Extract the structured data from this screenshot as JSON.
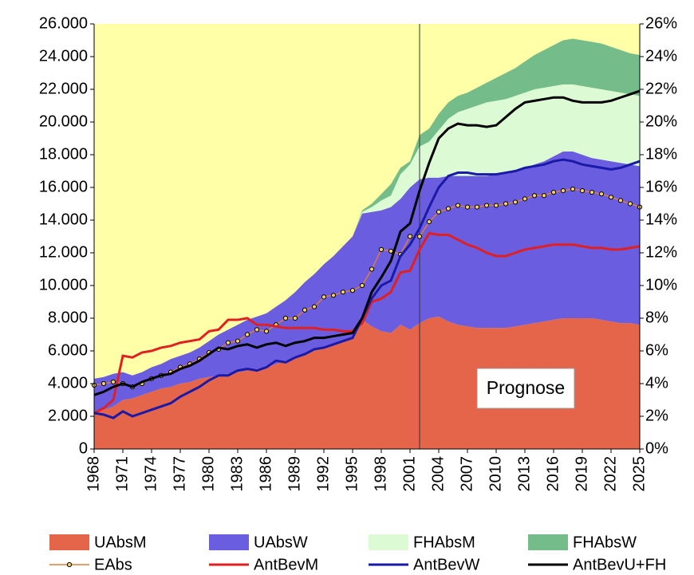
{
  "chart_data": {
    "type": "area",
    "stacked": true,
    "plot_background": "#ffffa8",
    "x": [
      1968,
      1969,
      1970,
      1971,
      1972,
      1973,
      1974,
      1975,
      1976,
      1977,
      1978,
      1979,
      1980,
      1981,
      1982,
      1983,
      1984,
      1985,
      1986,
      1987,
      1988,
      1989,
      1990,
      1991,
      1992,
      1993,
      1994,
      1995,
      1996,
      1997,
      1998,
      1999,
      2000,
      2001,
      2002,
      2003,
      2004,
      2005,
      2006,
      2007,
      2008,
      2009,
      2010,
      2011,
      2012,
      2013,
      2014,
      2015,
      2016,
      2017,
      2018,
      2019,
      2020,
      2021,
      2022,
      2023,
      2024,
      2025
    ],
    "xlim": [
      1968,
      2025
    ],
    "xticks": [
      1968,
      1971,
      1974,
      1977,
      1980,
      1983,
      1986,
      1989,
      1992,
      1995,
      1998,
      2001,
      2004,
      2007,
      2010,
      2013,
      2016,
      2019,
      2022,
      2025
    ],
    "ylim": [
      0,
      26000
    ],
    "yticks": [
      0,
      {
        "value": 2000,
        "label": "2.000"
      },
      {
        "value": 4000,
        "label": "4.000"
      },
      {
        "value": 6000,
        "label": "6.000"
      },
      {
        "value": 8000,
        "label": "8.000"
      },
      {
        "value": 10000,
        "label": "10.000"
      },
      {
        "value": 12000,
        "label": "12.000"
      },
      {
        "value": 14000,
        "label": "14.000"
      },
      {
        "value": 16000,
        "label": "16.000"
      },
      {
        "value": 18000,
        "label": "18.000"
      },
      {
        "value": 20000,
        "label": "20.000"
      },
      {
        "value": 22000,
        "label": "22.000"
      },
      {
        "value": 24000,
        "label": "24.000"
      },
      {
        "value": 26000,
        "label": "26.000"
      }
    ],
    "y2lim": [
      0,
      26
    ],
    "y2ticks": [
      {
        "value": 0,
        "label": "0%"
      },
      {
        "value": 2,
        "label": "2%"
      },
      {
        "value": 4,
        "label": "4%"
      },
      {
        "value": 6,
        "label": "6%"
      },
      {
        "value": 8,
        "label": "8%"
      },
      {
        "value": 10,
        "label": "10%"
      },
      {
        "value": 12,
        "label": "12%"
      },
      {
        "value": 14,
        "label": "14%"
      },
      {
        "value": 16,
        "label": "16%"
      },
      {
        "value": 18,
        "label": "18%"
      },
      {
        "value": 20,
        "label": "20%"
      },
      {
        "value": 22,
        "label": "22%"
      },
      {
        "value": 24,
        "label": "24%"
      },
      {
        "value": 26,
        "label": "26%"
      }
    ],
    "divider_x": 2002,
    "annotation": "Prognose",
    "series": [
      {
        "name": "UAbsM",
        "kind": "area",
        "color": "#e5654b",
        "values": [
          2200,
          2400,
          2600,
          3000,
          3100,
          3300,
          3500,
          3700,
          3800,
          4000,
          4100,
          4300,
          4400,
          4500,
          4600,
          4700,
          4800,
          4900,
          5000,
          5200,
          5400,
          5600,
          5800,
          6000,
          6200,
          6400,
          6600,
          6900,
          7900,
          7500,
          7200,
          7100,
          7600,
          7300,
          7700,
          8000,
          8100,
          7800,
          7600,
          7500,
          7400,
          7400,
          7400,
          7400,
          7500,
          7600,
          7700,
          7800,
          7900,
          8000,
          8000,
          8000,
          8000,
          7900,
          7800,
          7700,
          7700,
          7600
        ]
      },
      {
        "name": "UAbsW",
        "kind": "area",
        "color": "#6b5de0",
        "values": [
          2100,
          2000,
          2000,
          1700,
          1400,
          1400,
          1500,
          1500,
          1700,
          1700,
          1800,
          1900,
          2200,
          2500,
          2700,
          2900,
          3100,
          3200,
          3300,
          3500,
          3700,
          4000,
          4400,
          4700,
          5100,
          5400,
          5800,
          6100,
          6500,
          7000,
          7400,
          7700,
          7700,
          8700,
          8800,
          8600,
          8500,
          8900,
          9100,
          9200,
          9300,
          9300,
          9400,
          9500,
          9500,
          9600,
          9700,
          9800,
          10000,
          10200,
          10200,
          10000,
          9800,
          9800,
          9800,
          9800,
          9700,
          9700
        ]
      },
      {
        "name": "FHAbsM",
        "kind": "area",
        "color": "#dcfbd4",
        "values": [
          0,
          0,
          0,
          0,
          0,
          0,
          0,
          0,
          0,
          0,
          0,
          0,
          0,
          0,
          0,
          0,
          0,
          0,
          0,
          0,
          0,
          0,
          0,
          0,
          0,
          0,
          0,
          0,
          100,
          300,
          600,
          700,
          1500,
          1400,
          2000,
          2200,
          2900,
          3500,
          3900,
          4100,
          4300,
          4500,
          4500,
          4500,
          4600,
          4600,
          4600,
          4500,
          4300,
          4100,
          4100,
          4200,
          4300,
          4300,
          4300,
          4300,
          4300,
          4300
        ]
      },
      {
        "name": "FHAbsW",
        "kind": "area",
        "color": "#74bd8a",
        "values": [
          0,
          0,
          0,
          0,
          0,
          0,
          0,
          0,
          0,
          0,
          0,
          0,
          0,
          0,
          0,
          0,
          0,
          0,
          0,
          0,
          0,
          0,
          0,
          0,
          0,
          0,
          0,
          0,
          100,
          200,
          400,
          700,
          400,
          200,
          700,
          800,
          1000,
          1000,
          1000,
          1000,
          1100,
          1200,
          1400,
          1600,
          1700,
          1900,
          2100,
          2300,
          2500,
          2700,
          2800,
          2800,
          2800,
          2800,
          2700,
          2600,
          2500,
          2500
        ]
      },
      {
        "name": "EAbs",
        "kind": "line",
        "axis": "y2",
        "marker": true,
        "color": "#e07b39",
        "values": [
          3.9,
          4.0,
          4.1,
          4.0,
          3.8,
          4.0,
          4.3,
          4.5,
          4.7,
          5.0,
          5.2,
          5.5,
          5.9,
          6.1,
          6.5,
          6.6,
          7.0,
          7.3,
          7.2,
          7.6,
          8.0,
          8.0,
          8.5,
          8.7,
          9.3,
          9.4,
          9.6,
          9.7,
          10.0,
          11.0,
          12.2,
          12.1,
          11.9,
          13.0,
          13.0,
          13.9,
          14.5,
          14.7,
          14.9,
          14.8,
          14.8,
          14.9,
          14.9,
          15.0,
          15.1,
          15.3,
          15.5,
          15.5,
          15.7,
          15.8,
          15.9,
          15.8,
          15.7,
          15.6,
          15.4,
          15.2,
          15.0,
          14.8
        ]
      },
      {
        "name": "AntBevM",
        "kind": "line",
        "axis": "y2",
        "color": "#e02020",
        "values": [
          2.2,
          2.5,
          3.0,
          5.7,
          5.6,
          5.9,
          6.0,
          6.2,
          6.3,
          6.5,
          6.6,
          6.7,
          7.2,
          7.3,
          7.9,
          7.9,
          8.0,
          7.6,
          7.6,
          7.5,
          7.4,
          7.4,
          7.4,
          7.4,
          7.3,
          7.3,
          7.2,
          7.2,
          7.7,
          9.0,
          9.2,
          9.6,
          10.8,
          10.9,
          12.2,
          13.2,
          13.1,
          13.1,
          12.8,
          12.5,
          12.3,
          12.0,
          11.8,
          11.8,
          12.0,
          12.2,
          12.3,
          12.4,
          12.5,
          12.5,
          12.5,
          12.4,
          12.3,
          12.3,
          12.2,
          12.2,
          12.3,
          12.4
        ]
      },
      {
        "name": "AntBevW",
        "kind": "line",
        "axis": "y2",
        "color": "#1a1aa8",
        "values": [
          2.2,
          2.1,
          1.9,
          2.3,
          2.0,
          2.2,
          2.4,
          2.6,
          2.8,
          3.2,
          3.5,
          3.8,
          4.2,
          4.5,
          4.5,
          4.8,
          4.9,
          4.8,
          5.0,
          5.4,
          5.3,
          5.6,
          5.8,
          6.1,
          6.2,
          6.4,
          6.6,
          6.8,
          8.0,
          9.2,
          10.0,
          10.3,
          11.8,
          12.5,
          13.5,
          14.8,
          16.0,
          16.7,
          16.9,
          16.9,
          16.8,
          16.8,
          16.8,
          16.9,
          17.0,
          17.2,
          17.3,
          17.4,
          17.6,
          17.7,
          17.6,
          17.4,
          17.3,
          17.2,
          17.1,
          17.2,
          17.4,
          17.6
        ]
      },
      {
        "name": "AntBevU+FH",
        "kind": "line",
        "axis": "y2",
        "color": "#000000",
        "values": [
          3.3,
          3.5,
          3.8,
          4.0,
          3.8,
          4.1,
          4.3,
          4.5,
          4.6,
          4.9,
          5.1,
          5.4,
          5.8,
          6.2,
          6.1,
          6.3,
          6.4,
          6.2,
          6.4,
          6.5,
          6.3,
          6.5,
          6.6,
          6.8,
          6.8,
          6.9,
          7.0,
          7.1,
          8.0,
          9.6,
          10.5,
          11.5,
          13.3,
          13.8,
          15.8,
          17.5,
          19.0,
          19.6,
          19.9,
          19.8,
          19.8,
          19.7,
          19.8,
          20.3,
          20.8,
          21.2,
          21.3,
          21.4,
          21.5,
          21.5,
          21.3,
          21.2,
          21.2,
          21.2,
          21.3,
          21.5,
          21.7,
          21.9
        ]
      }
    ]
  }
}
